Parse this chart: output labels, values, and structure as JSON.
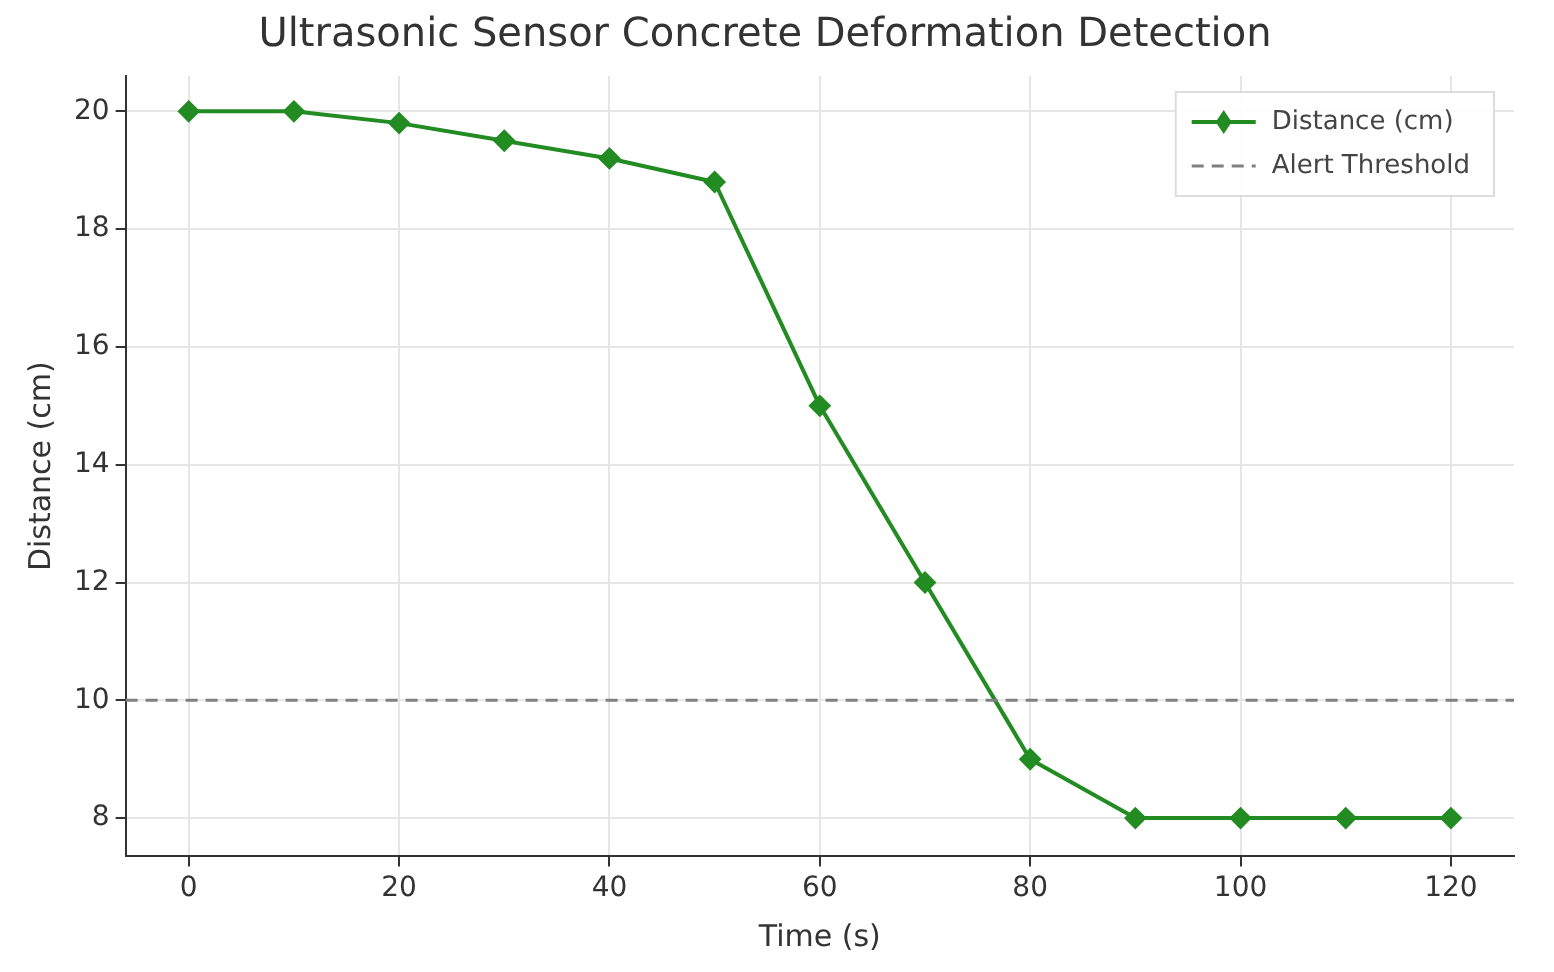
{
  "chart_data": {
    "type": "line",
    "title": "Ultrasonic Sensor Concrete Deformation Detection",
    "xlabel": "Time (s)",
    "ylabel": "Distance (cm)",
    "x": [
      0,
      10,
      20,
      30,
      40,
      50,
      60,
      70,
      80,
      90,
      100,
      110,
      120
    ],
    "series": [
      {
        "name": "Distance (cm)",
        "color": "#228b22",
        "values": [
          20,
          20,
          19.8,
          19.5,
          19.2,
          18.8,
          15,
          12,
          9,
          8,
          8,
          8,
          8
        ]
      }
    ],
    "ref_lines": [
      {
        "axis": "y",
        "value": 10,
        "label": "Alert Threshold",
        "color": "#808080",
        "line_style": "dashed"
      }
    ],
    "xlim": [
      -6,
      126
    ],
    "ylim": [
      7.35,
      20.6
    ],
    "xticks": [
      0,
      20,
      40,
      60,
      80,
      100,
      120
    ],
    "yticks": [
      8,
      10,
      12,
      14,
      16,
      18,
      20
    ],
    "grid": true,
    "legend": "top right",
    "marker": "diamond",
    "line_style": "solid"
  }
}
